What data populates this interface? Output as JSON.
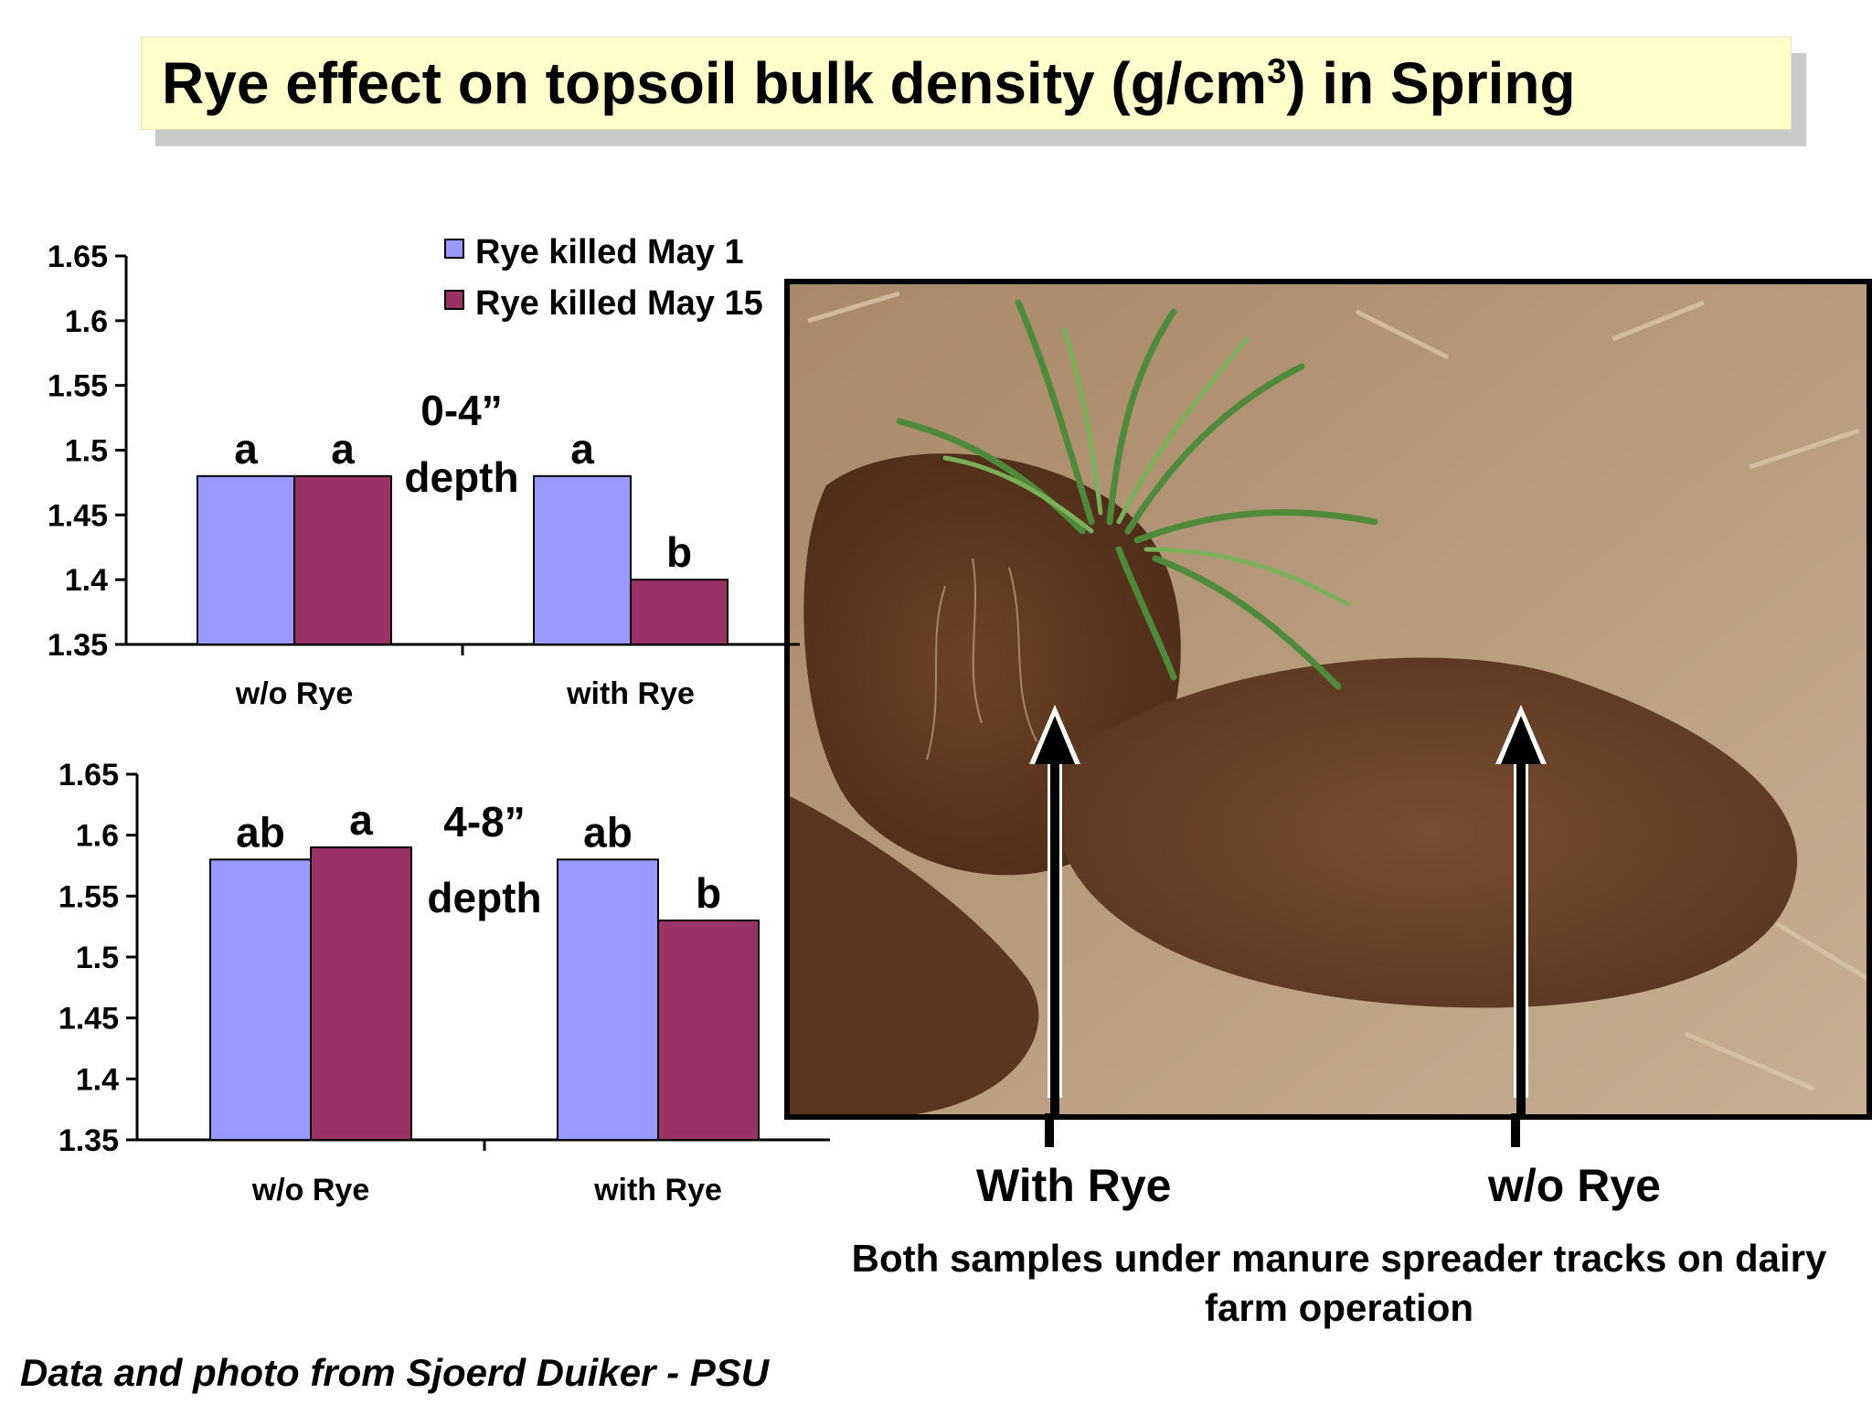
{
  "title": {
    "main": "Rye effect on topsoil bulk density (g/cm",
    "superscript": "3",
    "tail": ") in Spring"
  },
  "legend": {
    "items": [
      {
        "label": "Rye killed May 1",
        "color": "#9999ff"
      },
      {
        "label": "Rye killed May 15",
        "color": "#993366"
      }
    ],
    "position": "top-right"
  },
  "chart_data": [
    {
      "type": "bar",
      "title": "",
      "annotation_line1": "0-4”",
      "annotation_line2": "depth",
      "categories": [
        "w/o Rye",
        "with Rye"
      ],
      "series": [
        {
          "name": "Rye killed May 1",
          "values": [
            1.48,
            1.48
          ],
          "letters": [
            "a",
            "a"
          ]
        },
        {
          "name": "Rye killed May 15",
          "values": [
            1.48,
            1.4
          ],
          "letters": [
            "a",
            "b"
          ]
        }
      ],
      "ylim": [
        1.35,
        1.65
      ],
      "yticks": [
        "1.35",
        "1.4",
        "1.45",
        "1.5",
        "1.55",
        "1.6",
        "1.65"
      ],
      "grid": false
    },
    {
      "type": "bar",
      "title": "",
      "annotation_line1": "4-8”",
      "annotation_line2": "depth",
      "categories": [
        "w/o Rye",
        "with Rye"
      ],
      "series": [
        {
          "name": "Rye killed May 1",
          "values": [
            1.58,
            1.58
          ],
          "letters": [
            "ab",
            "ab"
          ]
        },
        {
          "name": "Rye killed May 15",
          "values": [
            1.59,
            1.53
          ],
          "letters": [
            "a",
            "b"
          ]
        }
      ],
      "ylim": [
        1.35,
        1.65
      ],
      "yticks": [
        "1.35",
        "1.4",
        "1.45",
        "1.5",
        "1.55",
        "1.6",
        "1.65"
      ],
      "grid": false
    }
  ],
  "photo": {
    "left_arrow_label": "With Rye",
    "right_arrow_label": "w/o Rye"
  },
  "caption": "Both samples under manure spreader tracks on dairy farm operation",
  "credit": "Data and photo from Sjoerd Duiker - PSU"
}
